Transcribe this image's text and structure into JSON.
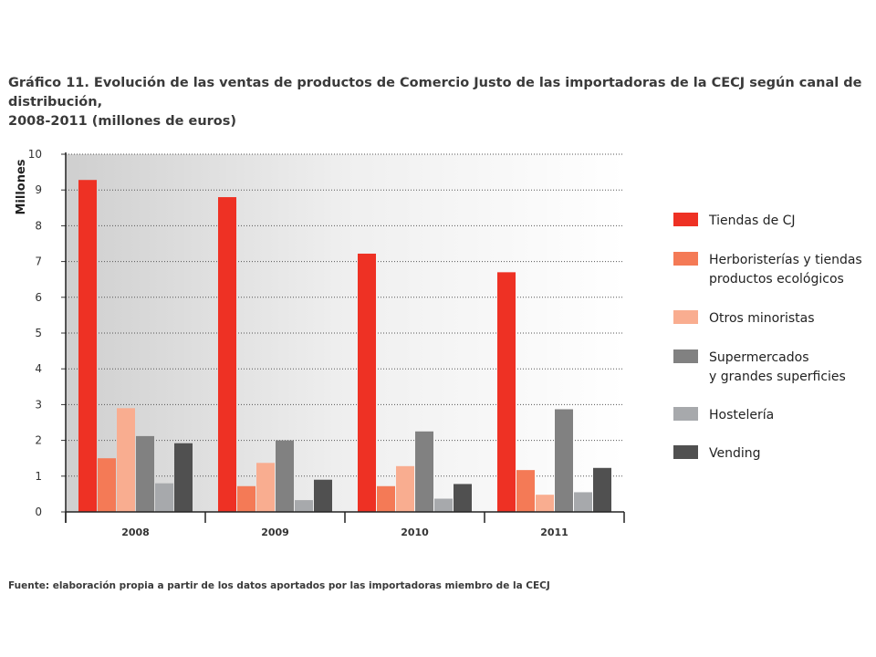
{
  "title": {
    "line1": "Gráfico 11. Evolución de las ventas de productos de Comercio Justo de las importadoras de la CECJ según canal de distribución,",
    "line2": "2008-2011 (millones de euros)"
  },
  "source": "Fuente: elaboración propia a partir de los datos aportados por las importadoras miembro de la CECJ",
  "chart_data": {
    "type": "bar",
    "title": "Gráfico 11. Evolución de las ventas de productos de Comercio Justo de las importadoras de la CECJ según canal de distribución, 2008-2011 (millones de euros)",
    "xlabel": "",
    "ylabel": "Millones",
    "ylim": [
      0,
      10
    ],
    "yticks": [
      0,
      1,
      2,
      3,
      4,
      5,
      6,
      7,
      8,
      9,
      10
    ],
    "grid": true,
    "legend_position": "right",
    "categories": [
      "2008",
      "2009",
      "2010",
      "2011"
    ],
    "series": [
      {
        "name": "Tiendas de CJ",
        "label_lines": [
          "Tiendas de CJ"
        ],
        "color": "#ee3124",
        "values": [
          9.28,
          8.8,
          7.22,
          6.7
        ]
      },
      {
        "name": "Herboristerías y tiendas productos ecológicos",
        "label_lines": [
          "Herboristerías y tiendas",
          "productos ecológicos"
        ],
        "color": "#f47a56",
        "values": [
          1.5,
          0.72,
          0.72,
          1.17
        ]
      },
      {
        "name": "Otros minoristas",
        "label_lines": [
          "Otros minoristas"
        ],
        "color": "#f9ad90",
        "values": [
          2.9,
          1.37,
          1.28,
          0.48
        ]
      },
      {
        "name": "Supermercados y grandes superficies",
        "label_lines": [
          "Supermercados",
          "y grandes superficies"
        ],
        "color": "#818181",
        "values": [
          2.12,
          2.0,
          2.25,
          2.87
        ]
      },
      {
        "name": "Hostelería",
        "label_lines": [
          "Hostelería"
        ],
        "color": "#a7a9ac",
        "values": [
          0.8,
          0.33,
          0.37,
          0.55
        ]
      },
      {
        "name": "Vending",
        "label_lines": [
          "Vending"
        ],
        "color": "#505050",
        "values": [
          1.92,
          0.9,
          0.78,
          1.23
        ]
      }
    ]
  }
}
